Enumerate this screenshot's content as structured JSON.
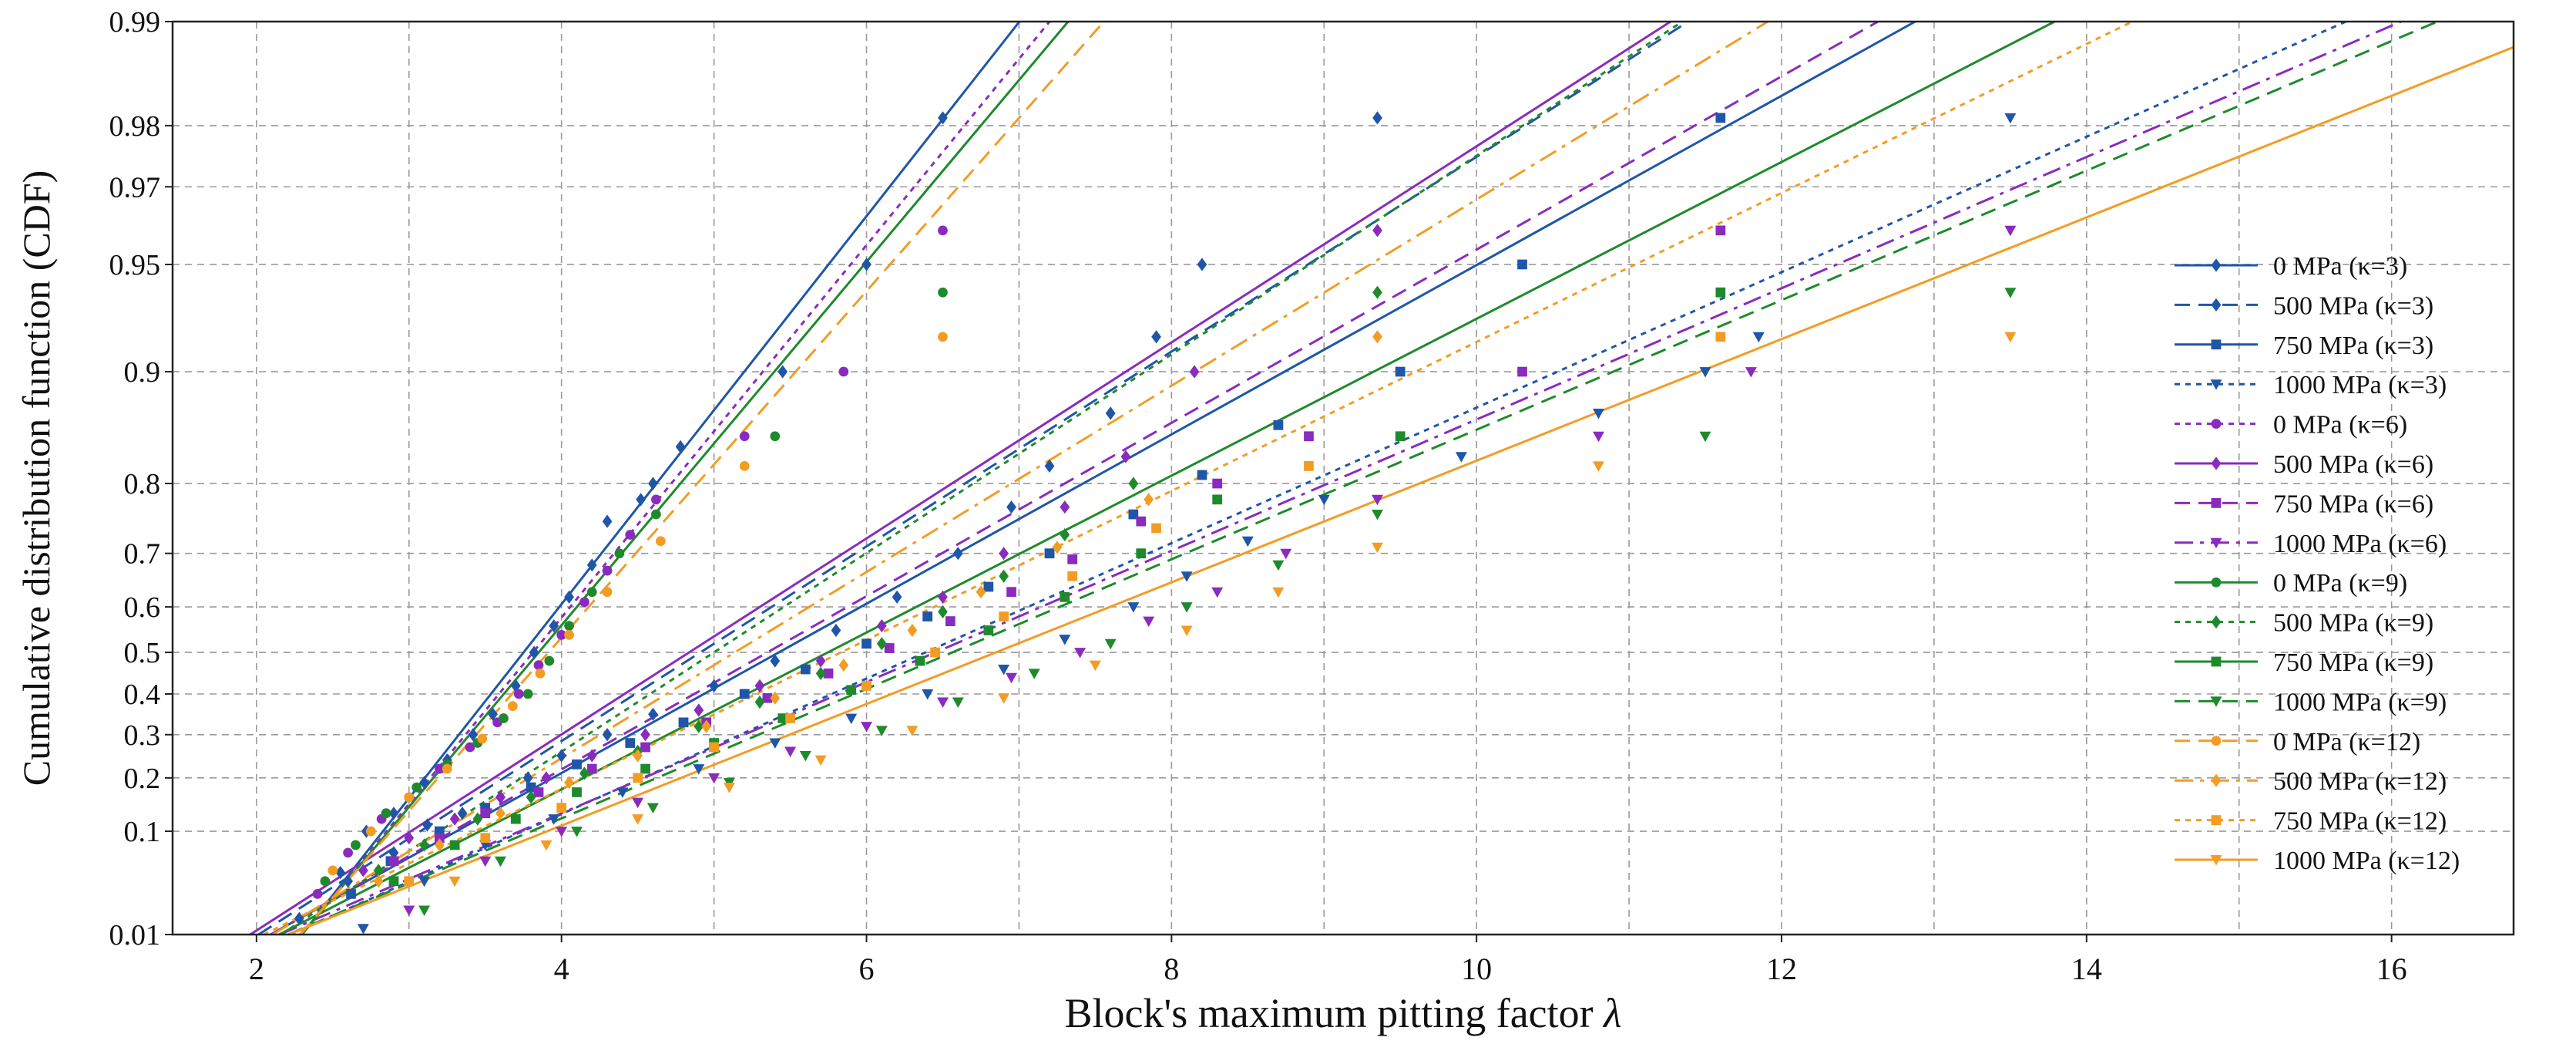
{
  "chart_data": {
    "type": "scatter",
    "title": "",
    "xlabel": "Block's maximum pitting factor λ",
    "xlabel_main": "Block's maximum pitting factor ",
    "xlabel_symbol": "λ",
    "ylabel": "Cumulative distribution function (CDF)",
    "x_scale": "linear",
    "y_scale": "gumbel-probability",
    "xlim": [
      1.45,
      16.8
    ],
    "ylim": [
      0.01,
      0.99
    ],
    "x_ticks": [
      2,
      4,
      6,
      8,
      10,
      12,
      14,
      16
    ],
    "x_tick_labels": [
      "2",
      "4",
      "6",
      "8",
      "10",
      "12",
      "14",
      "16"
    ],
    "x_minor_ticks": [
      3,
      5,
      7,
      9,
      11,
      13,
      15
    ],
    "y_ticks": [
      0.01,
      0.1,
      0.2,
      0.3,
      0.4,
      0.5,
      0.6,
      0.7,
      0.8,
      0.9,
      0.95,
      0.97,
      0.98,
      0.99
    ],
    "y_tick_labels": [
      "0.01",
      "0.1",
      "0.2",
      "0.3",
      "0.4",
      "0.5",
      "0.6",
      "0.7",
      "0.8",
      "0.9",
      "0.95",
      "0.97",
      "0.98",
      "0.99"
    ],
    "grid": true,
    "legend_position": "right",
    "colors": {
      "blue": "#1f56a8",
      "purple": "#8a2bbf",
      "green": "#1f8a2c",
      "orange": "#f39c24"
    },
    "series": [
      {
        "name": "0 MPa (κ=3)",
        "color": "#1f56a8",
        "line": "solid",
        "marker": "diamond",
        "mu": 3.47,
        "beta": 0.768,
        "points": [
          [
            2.28,
            0.016
          ],
          [
            2.55,
            0.048
          ],
          [
            2.72,
            0.1
          ],
          [
            2.9,
            0.13
          ],
          [
            3.1,
            0.19
          ],
          [
            3.25,
            0.24
          ],
          [
            3.42,
            0.3
          ],
          [
            3.55,
            0.35
          ],
          [
            3.7,
            0.42
          ],
          [
            3.82,
            0.5
          ],
          [
            3.95,
            0.56
          ],
          [
            4.05,
            0.62
          ],
          [
            4.2,
            0.68
          ],
          [
            4.3,
            0.75
          ],
          [
            4.52,
            0.78
          ],
          [
            4.6,
            0.8
          ],
          [
            4.78,
            0.84
          ],
          [
            5.45,
            0.9
          ],
          [
            6.0,
            0.95
          ],
          [
            6.5,
            0.981
          ]
        ]
      },
      {
        "name": "500 MPa (κ=3)",
        "color": "#1f56a8",
        "line": "dashed",
        "marker": "diamond",
        "mu": 4.35,
        "beta": 1.53,
        "points": [
          [
            2.6,
            0.04
          ],
          [
            2.9,
            0.07
          ],
          [
            3.12,
            0.11
          ],
          [
            3.35,
            0.13
          ],
          [
            3.6,
            0.16
          ],
          [
            3.78,
            0.2
          ],
          [
            4.0,
            0.25
          ],
          [
            4.3,
            0.3
          ],
          [
            4.6,
            0.35
          ],
          [
            5.0,
            0.42
          ],
          [
            5.4,
            0.48
          ],
          [
            5.8,
            0.55
          ],
          [
            6.2,
            0.62
          ],
          [
            6.6,
            0.7
          ],
          [
            6.95,
            0.77
          ],
          [
            7.2,
            0.82
          ],
          [
            7.6,
            0.87
          ],
          [
            7.9,
            0.92
          ],
          [
            8.2,
            0.95
          ],
          [
            9.35,
            0.981
          ]
        ]
      },
      {
        "name": "750 MPa (κ=3)",
        "color": "#1f56a8",
        "line": "solid",
        "marker": "square",
        "mu": 4.78,
        "beta": 1.76,
        "points": [
          [
            2.62,
            0.03
          ],
          [
            2.88,
            0.06
          ],
          [
            3.2,
            0.1
          ],
          [
            3.5,
            0.14
          ],
          [
            3.8,
            0.18
          ],
          [
            4.1,
            0.23
          ],
          [
            4.45,
            0.28
          ],
          [
            4.8,
            0.33
          ],
          [
            5.2,
            0.4
          ],
          [
            5.6,
            0.46
          ],
          [
            6.0,
            0.52
          ],
          [
            6.4,
            0.58
          ],
          [
            6.8,
            0.64
          ],
          [
            7.2,
            0.7
          ],
          [
            7.75,
            0.76
          ],
          [
            8.2,
            0.81
          ],
          [
            8.7,
            0.86
          ],
          [
            9.5,
            0.9
          ],
          [
            10.3,
            0.95
          ],
          [
            11.6,
            0.981
          ]
        ]
      },
      {
        "name": "1000 MPa (κ=3)",
        "color": "#1f56a8",
        "line": "dotted",
        "marker": "triangle-down",
        "mu": 5.58,
        "beta": 2.2,
        "points": [
          [
            2.7,
            0.012
          ],
          [
            3.1,
            0.04
          ],
          [
            3.5,
            0.08
          ],
          [
            3.95,
            0.12
          ],
          [
            4.4,
            0.17
          ],
          [
            4.9,
            0.22
          ],
          [
            5.4,
            0.28
          ],
          [
            5.9,
            0.34
          ],
          [
            6.4,
            0.4
          ],
          [
            6.9,
            0.46
          ],
          [
            7.3,
            0.53
          ],
          [
            7.75,
            0.6
          ],
          [
            8.1,
            0.66
          ],
          [
            8.5,
            0.72
          ],
          [
            9.0,
            0.78
          ],
          [
            9.9,
            0.83
          ],
          [
            10.8,
            0.87
          ],
          [
            11.5,
            0.9
          ],
          [
            11.85,
            0.92
          ],
          [
            13.5,
            0.981
          ]
        ]
      },
      {
        "name": "0 MPa (κ=6)",
        "color": "#8a2bbf",
        "line": "dotted",
        "marker": "circle",
        "mu": 3.52,
        "beta": 0.8,
        "points": [
          [
            2.4,
            0.03
          ],
          [
            2.6,
            0.07
          ],
          [
            2.82,
            0.12
          ],
          [
            3.0,
            0.16
          ],
          [
            3.2,
            0.22
          ],
          [
            3.4,
            0.27
          ],
          [
            3.58,
            0.33
          ],
          [
            3.72,
            0.4
          ],
          [
            3.85,
            0.47
          ],
          [
            4.0,
            0.54
          ],
          [
            4.15,
            0.61
          ],
          [
            4.3,
            0.67
          ],
          [
            4.45,
            0.73
          ],
          [
            4.62,
            0.78
          ],
          [
            5.2,
            0.85
          ],
          [
            5.85,
            0.9
          ],
          [
            6.5,
            0.96
          ]
        ]
      },
      {
        "name": "500 MPa (κ=6)",
        "color": "#8a2bbf",
        "line": "solid",
        "marker": "diamond",
        "mu": 4.28,
        "beta": 1.52,
        "points": [
          [
            2.7,
            0.05
          ],
          [
            3.0,
            0.09
          ],
          [
            3.3,
            0.12
          ],
          [
            3.6,
            0.16
          ],
          [
            3.9,
            0.2
          ],
          [
            4.2,
            0.25
          ],
          [
            4.55,
            0.3
          ],
          [
            4.9,
            0.36
          ],
          [
            5.3,
            0.42
          ],
          [
            5.7,
            0.48
          ],
          [
            6.1,
            0.56
          ],
          [
            6.5,
            0.62
          ],
          [
            6.9,
            0.7
          ],
          [
            7.3,
            0.77
          ],
          [
            7.7,
            0.83
          ],
          [
            8.15,
            0.9
          ],
          [
            9.35,
            0.96
          ]
        ]
      },
      {
        "name": "750 MPa (κ=6)",
        "color": "#8a2bbf",
        "line": "dashed",
        "marker": "square",
        "mu": 4.72,
        "beta": 1.72,
        "points": [
          [
            2.9,
            0.06
          ],
          [
            3.2,
            0.09
          ],
          [
            3.5,
            0.13
          ],
          [
            3.85,
            0.17
          ],
          [
            4.2,
            0.22
          ],
          [
            4.55,
            0.27
          ],
          [
            4.95,
            0.33
          ],
          [
            5.35,
            0.39
          ],
          [
            5.75,
            0.45
          ],
          [
            6.15,
            0.51
          ],
          [
            6.55,
            0.57
          ],
          [
            6.95,
            0.63
          ],
          [
            7.35,
            0.69
          ],
          [
            7.8,
            0.75
          ],
          [
            8.3,
            0.8
          ],
          [
            8.9,
            0.85
          ],
          [
            10.3,
            0.9
          ],
          [
            11.6,
            0.96
          ]
        ]
      },
      {
        "name": "1000 MPa (κ=6)",
        "color": "#8a2bbf",
        "line": "dashdot",
        "marker": "triangle-down",
        "mu": 5.62,
        "beta": 2.27,
        "points": [
          [
            3.0,
            0.02
          ],
          [
            3.5,
            0.06
          ],
          [
            4.0,
            0.1
          ],
          [
            4.5,
            0.15
          ],
          [
            5.0,
            0.2
          ],
          [
            5.5,
            0.26
          ],
          [
            6.0,
            0.32
          ],
          [
            6.5,
            0.38
          ],
          [
            6.95,
            0.44
          ],
          [
            7.4,
            0.5
          ],
          [
            7.85,
            0.57
          ],
          [
            8.3,
            0.63
          ],
          [
            8.75,
            0.7
          ],
          [
            9.35,
            0.78
          ],
          [
            10.8,
            0.85
          ],
          [
            11.8,
            0.9
          ],
          [
            13.5,
            0.96
          ]
        ]
      },
      {
        "name": "0 MPa (κ=9)",
        "color": "#1f8a2c",
        "line": "solid",
        "marker": "circle",
        "mu": 3.55,
        "beta": 0.82,
        "points": [
          [
            2.45,
            0.04
          ],
          [
            2.65,
            0.08
          ],
          [
            2.85,
            0.13
          ],
          [
            3.05,
            0.18
          ],
          [
            3.25,
            0.23
          ],
          [
            3.45,
            0.28
          ],
          [
            3.62,
            0.34
          ],
          [
            3.78,
            0.4
          ],
          [
            3.92,
            0.48
          ],
          [
            4.05,
            0.56
          ],
          [
            4.2,
            0.63
          ],
          [
            4.38,
            0.7
          ],
          [
            4.62,
            0.76
          ],
          [
            5.4,
            0.85
          ],
          [
            6.5,
            0.94
          ]
        ]
      },
      {
        "name": "500 MPa (κ=9)",
        "color": "#1f8a2c",
        "line": "dotted",
        "marker": "diamond",
        "mu": 4.45,
        "beta": 1.5,
        "points": [
          [
            2.8,
            0.05
          ],
          [
            3.1,
            0.08
          ],
          [
            3.45,
            0.12
          ],
          [
            3.8,
            0.16
          ],
          [
            4.15,
            0.21
          ],
          [
            4.5,
            0.26
          ],
          [
            4.9,
            0.32
          ],
          [
            5.3,
            0.38
          ],
          [
            5.7,
            0.45
          ],
          [
            6.1,
            0.52
          ],
          [
            6.5,
            0.59
          ],
          [
            6.9,
            0.66
          ],
          [
            7.3,
            0.73
          ],
          [
            7.75,
            0.8
          ],
          [
            9.35,
            0.94
          ]
        ]
      },
      {
        "name": "750 MPa (κ=9)",
        "color": "#1f8a2c",
        "line": "solid",
        "marker": "square",
        "mu": 5.05,
        "beta": 1.9,
        "points": [
          [
            2.9,
            0.04
          ],
          [
            3.3,
            0.08
          ],
          [
            3.7,
            0.12
          ],
          [
            4.1,
            0.17
          ],
          [
            4.55,
            0.22
          ],
          [
            5.0,
            0.28
          ],
          [
            5.45,
            0.34
          ],
          [
            5.9,
            0.41
          ],
          [
            6.35,
            0.48
          ],
          [
            6.8,
            0.55
          ],
          [
            7.3,
            0.62
          ],
          [
            7.8,
            0.7
          ],
          [
            8.3,
            0.78
          ],
          [
            9.5,
            0.85
          ],
          [
            11.6,
            0.94
          ]
        ]
      },
      {
        "name": "1000 MPa (κ=9)",
        "color": "#1f8a2c",
        "line": "dashed",
        "marker": "triangle-down",
        "mu": 5.72,
        "beta": 2.3,
        "points": [
          [
            3.1,
            0.02
          ],
          [
            3.6,
            0.06
          ],
          [
            4.1,
            0.1
          ],
          [
            4.6,
            0.14
          ],
          [
            5.1,
            0.19
          ],
          [
            5.6,
            0.25
          ],
          [
            6.1,
            0.31
          ],
          [
            6.6,
            0.38
          ],
          [
            7.1,
            0.45
          ],
          [
            7.6,
            0.52
          ],
          [
            8.1,
            0.6
          ],
          [
            8.7,
            0.68
          ],
          [
            9.35,
            0.76
          ],
          [
            11.5,
            0.85
          ],
          [
            13.5,
            0.94
          ]
        ]
      },
      {
        "name": "0 MPa (κ=12)",
        "color": "#f39c24",
        "line": "dashed",
        "marker": "circle",
        "mu": 3.6,
        "beta": 0.86,
        "points": [
          [
            2.5,
            0.05
          ],
          [
            2.75,
            0.1
          ],
          [
            3.0,
            0.16
          ],
          [
            3.25,
            0.22
          ],
          [
            3.48,
            0.29
          ],
          [
            3.68,
            0.37
          ],
          [
            3.86,
            0.45
          ],
          [
            4.05,
            0.54
          ],
          [
            4.3,
            0.63
          ],
          [
            4.65,
            0.72
          ],
          [
            5.2,
            0.82
          ],
          [
            6.5,
            0.92
          ]
        ]
      },
      {
        "name": "500 MPa (κ=12)",
        "color": "#f39c24",
        "line": "dashdot",
        "marker": "diamond",
        "mu": 4.55,
        "beta": 1.6,
        "points": [
          [
            2.8,
            0.04
          ],
          [
            3.2,
            0.08
          ],
          [
            3.6,
            0.13
          ],
          [
            4.05,
            0.19
          ],
          [
            4.5,
            0.25
          ],
          [
            4.95,
            0.32
          ],
          [
            5.4,
            0.39
          ],
          [
            5.85,
            0.47
          ],
          [
            6.3,
            0.55
          ],
          [
            6.75,
            0.63
          ],
          [
            7.25,
            0.71
          ],
          [
            7.85,
            0.78
          ],
          [
            9.35,
            0.92
          ]
        ]
      },
      {
        "name": "750 MPa (κ=12)",
        "color": "#f39c24",
        "line": "dotted",
        "marker": "square",
        "mu": 5.1,
        "beta": 2.0,
        "points": [
          [
            3.0,
            0.04
          ],
          [
            3.5,
            0.09
          ],
          [
            4.0,
            0.14
          ],
          [
            4.5,
            0.2
          ],
          [
            5.0,
            0.27
          ],
          [
            5.5,
            0.34
          ],
          [
            6.0,
            0.42
          ],
          [
            6.45,
            0.5
          ],
          [
            6.9,
            0.58
          ],
          [
            7.35,
            0.66
          ],
          [
            7.9,
            0.74
          ],
          [
            8.9,
            0.82
          ],
          [
            11.6,
            0.92
          ]
        ]
      },
      {
        "name": "1000 MPa (κ=12)",
        "color": "#f39c24",
        "line": "solid",
        "marker": "triangle-down",
        "mu": 5.95,
        "beta": 2.45,
        "points": [
          [
            3.3,
            0.04
          ],
          [
            3.9,
            0.08
          ],
          [
            4.5,
            0.12
          ],
          [
            5.1,
            0.18
          ],
          [
            5.7,
            0.24
          ],
          [
            6.3,
            0.31
          ],
          [
            6.9,
            0.39
          ],
          [
            7.5,
            0.47
          ],
          [
            8.1,
            0.55
          ],
          [
            8.7,
            0.63
          ],
          [
            9.35,
            0.71
          ],
          [
            10.8,
            0.82
          ],
          [
            13.5,
            0.92
          ]
        ]
      }
    ]
  }
}
